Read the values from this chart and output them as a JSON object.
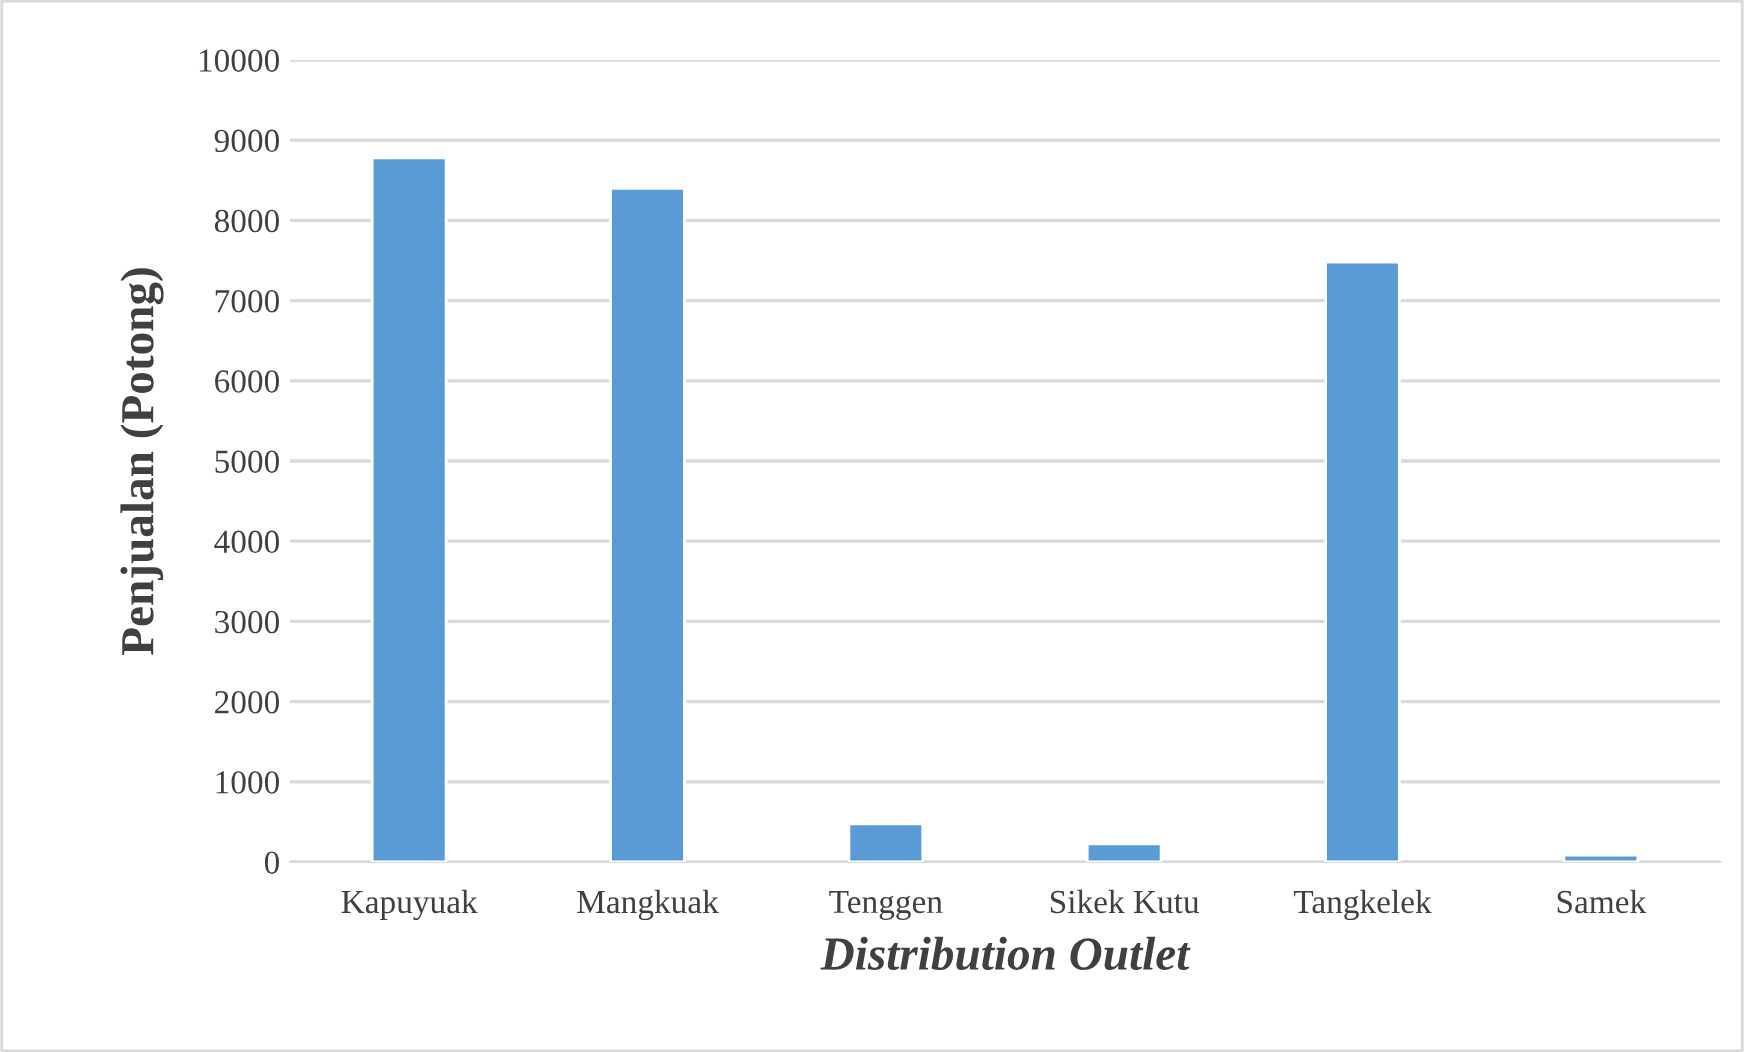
{
  "chart_data": {
    "type": "bar",
    "xlabel": "Distribution Outlet",
    "ylabel": "Penjualan (Potong)",
    "categories": [
      "Kapuyuak",
      "Mangkuak",
      "Tenggen",
      "Sikek Kutu",
      "Tangkelek",
      "Samek"
    ],
    "values": [
      8780,
      8400,
      475,
      225,
      7480,
      85
    ],
    "color": "#5b9bd5",
    "ylim": [
      0,
      10000
    ],
    "yticks": [
      0,
      1000,
      2000,
      3000,
      4000,
      5000,
      6000,
      7000,
      8000,
      9000,
      10000
    ],
    "grid": "y",
    "legend": false
  }
}
